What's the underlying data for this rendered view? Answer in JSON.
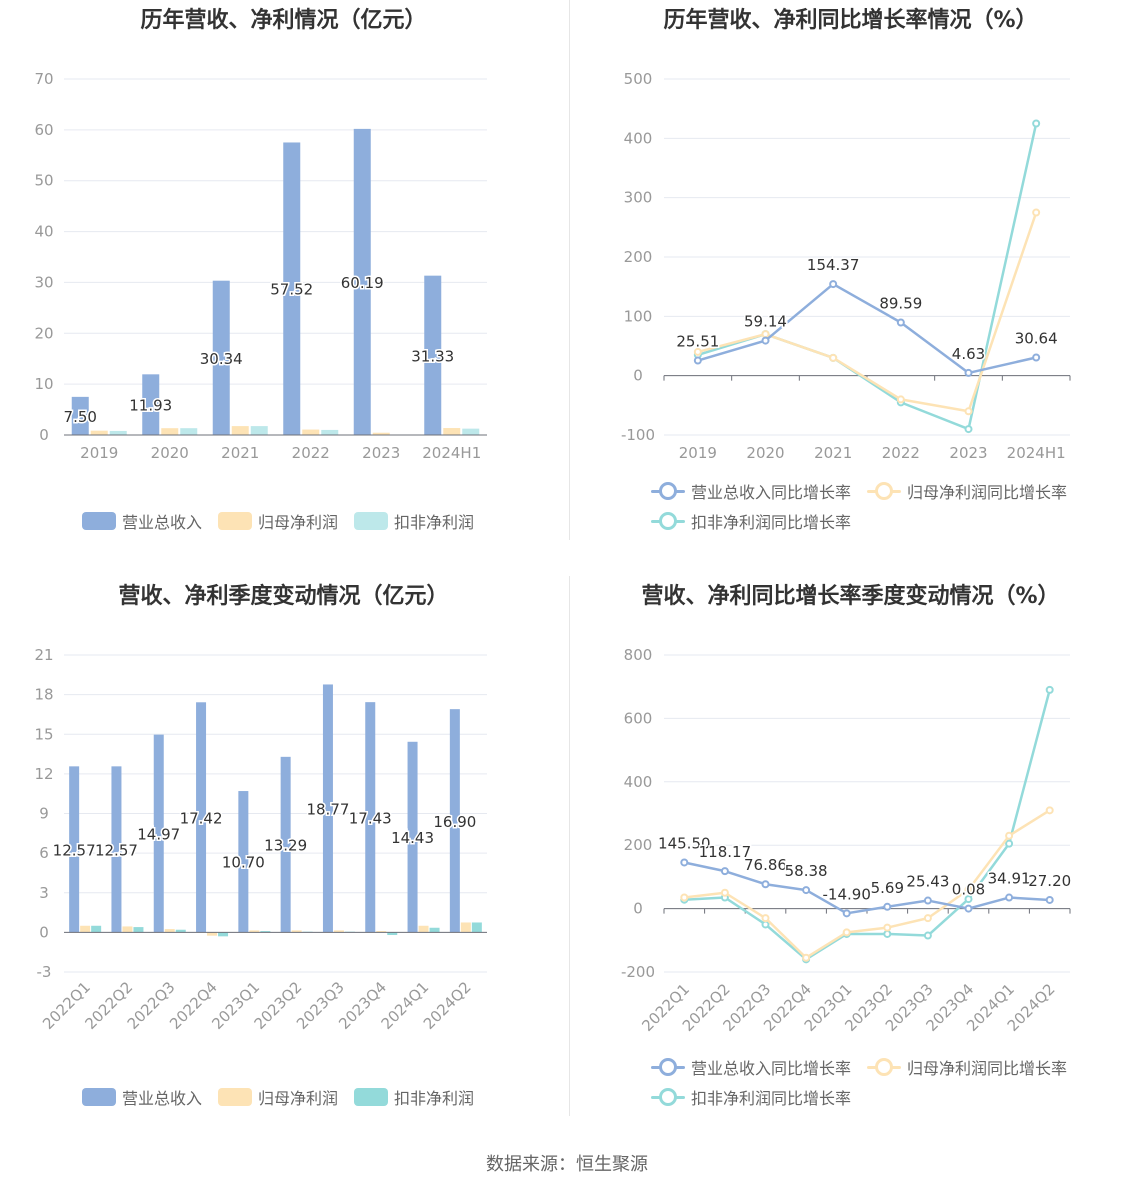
{
  "footer": {
    "source": "数据来源：恒生聚源"
  },
  "colors": {
    "revenue": "#8eaedc",
    "net_profit": "#fde3b5",
    "deducted_net_profit": "#93dada"
  },
  "chart_data": [
    {
      "id": "annual_amount",
      "type": "bar",
      "title": "历年营收、净利情况（亿元）",
      "categories": [
        "2019",
        "2020",
        "2021",
        "2022",
        "2023",
        "2024H1"
      ],
      "ylim": [
        0,
        70
      ],
      "yticks": [
        "0",
        "10",
        "20",
        "30",
        "40",
        "50",
        "60",
        "70"
      ],
      "legend_position": "bottom",
      "series": [
        {
          "name": "营业总收入",
          "color": "#8eaedc",
          "values": [
            7.5,
            11.93,
            30.34,
            57.52,
            60.19,
            31.33
          ],
          "labels": [
            "7.50",
            "11.93",
            "30.34",
            "57.52",
            "60.19",
            "31.33"
          ]
        },
        {
          "name": "归母净利润",
          "color": "#fde3b5",
          "values": [
            0.85,
            1.34,
            1.75,
            1.07,
            0.45,
            1.37
          ]
        },
        {
          "name": "扣非净利润",
          "color": "#bde8ea",
          "values": [
            0.8,
            1.34,
            1.75,
            1.0,
            0.1,
            1.25
          ]
        }
      ]
    },
    {
      "id": "annual_growth",
      "type": "line",
      "title": "历年营收、净利同比增长率情况（%）",
      "categories": [
        "2019",
        "2020",
        "2021",
        "2022",
        "2023",
        "2024H1"
      ],
      "ylim": [
        -100,
        500
      ],
      "yticks": [
        "-100",
        "0",
        "100",
        "200",
        "300",
        "400",
        "500"
      ],
      "legend_position": "bottom",
      "series": [
        {
          "name": "营业总收入同比增长率",
          "color": "#8eaedc",
          "values": [
            25.51,
            59.14,
            154.37,
            89.59,
            4.63,
            30.64
          ],
          "labels": [
            "25.51",
            "59.14",
            "154.37",
            "89.59",
            "4.63",
            "30.64"
          ]
        },
        {
          "name": "归母净利润同比增长率",
          "color": "#fde3b5",
          "values": [
            40,
            70,
            30,
            -40,
            -60,
            275
          ]
        },
        {
          "name": "扣非净利润同比增长率",
          "color": "#93dada",
          "values": [
            35,
            70,
            30,
            -45,
            -90,
            425
          ]
        }
      ]
    },
    {
      "id": "quarterly_amount",
      "type": "bar",
      "title": "营收、净利季度变动情况（亿元）",
      "categories": [
        "2022Q1",
        "2022Q2",
        "2022Q3",
        "2022Q4",
        "2023Q1",
        "2023Q2",
        "2023Q3",
        "2023Q4",
        "2024Q1",
        "2024Q2"
      ],
      "ylim": [
        -3,
        21
      ],
      "yticks": [
        "-3",
        "0",
        "3",
        "6",
        "9",
        "12",
        "15",
        "18",
        "21"
      ],
      "legend_position": "bottom",
      "series": [
        {
          "name": "营业总收入",
          "color": "#8eaedc",
          "values": [
            12.57,
            12.57,
            14.97,
            17.42,
            10.7,
            13.29,
            18.77,
            17.43,
            14.43,
            16.9
          ],
          "labels": [
            "12.57",
            "12.57",
            "14.97",
            "17.42",
            "10.70",
            "13.29",
            "18.77",
            "17.43",
            "14.43",
            "16.90"
          ]
        },
        {
          "name": "归母净利润",
          "color": "#fde3b5",
          "values": [
            0.5,
            0.45,
            0.25,
            -0.25,
            0.15,
            0.15,
            0.15,
            0.1,
            0.5,
            0.75
          ]
        },
        {
          "name": "扣非净利润",
          "color": "#93dada",
          "values": [
            0.5,
            0.4,
            0.2,
            -0.3,
            0.1,
            0.05,
            0.05,
            -0.2,
            0.35,
            0.75
          ]
        }
      ]
    },
    {
      "id": "quarterly_growth",
      "type": "line",
      "title": "营收、净利同比增长率季度变动情况（%）",
      "categories": [
        "2022Q1",
        "2022Q2",
        "2022Q3",
        "2022Q4",
        "2023Q1",
        "2023Q2",
        "2023Q3",
        "2023Q4",
        "2024Q1",
        "2024Q2"
      ],
      "ylim": [
        -200,
        800
      ],
      "yticks": [
        "-200",
        "0",
        "200",
        "400",
        "600",
        "800"
      ],
      "legend_position": "bottom",
      "series": [
        {
          "name": "营业总收入同比增长率",
          "color": "#8eaedc",
          "values": [
            145.5,
            118.17,
            76.86,
            58.38,
            -14.9,
            5.69,
            25.43,
            0.08,
            34.91,
            27.2
          ],
          "labels": [
            "145.50",
            "118.17",
            "76.86",
            "58.38",
            "-14.90",
            "5.69",
            "25.43",
            "0.08",
            "34.91",
            "27.20"
          ]
        },
        {
          "name": "归母净利润同比增长率",
          "color": "#fde3b5",
          "values": [
            35,
            50,
            -30,
            -155,
            -75,
            -60,
            -30,
            60,
            230,
            310
          ]
        },
        {
          "name": "扣非净利润同比增长率",
          "color": "#93dada",
          "values": [
            28,
            35,
            -50,
            -160,
            -80,
            -80,
            -85,
            30,
            205,
            690
          ]
        }
      ]
    }
  ]
}
